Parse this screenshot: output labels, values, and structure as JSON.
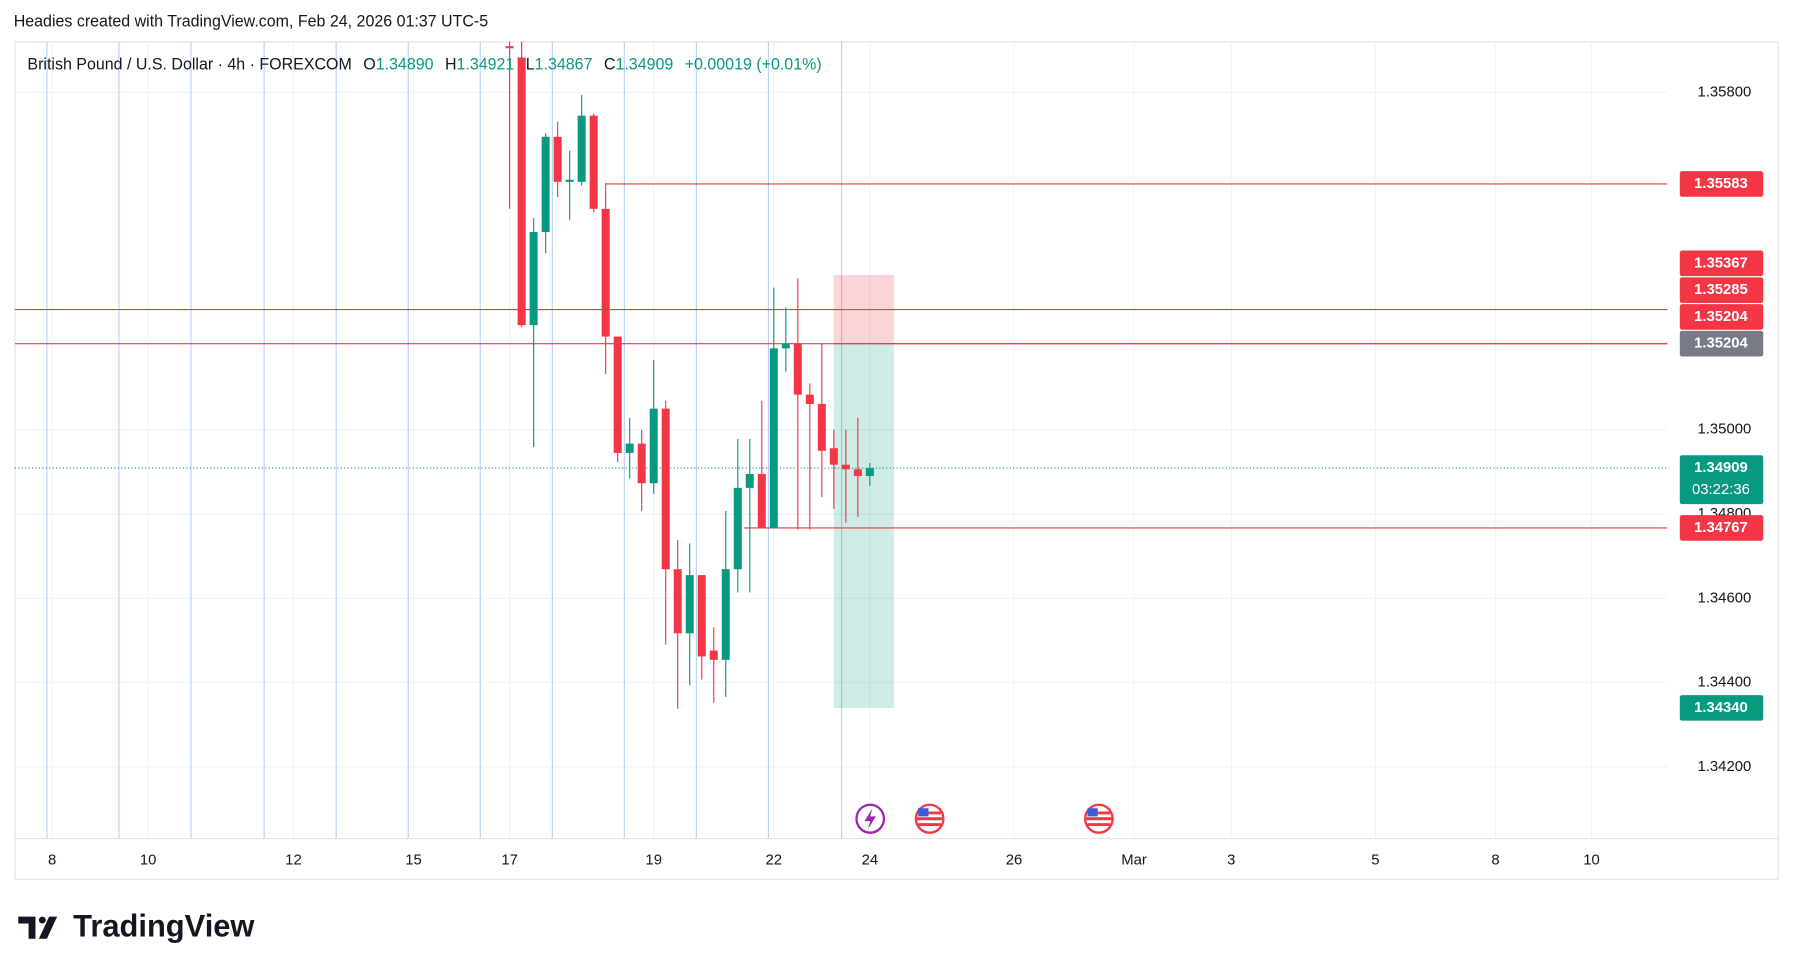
{
  "header": {
    "attribution": "Headies created with TradingView.com, Feb 24, 2026 01:37 UTC-5"
  },
  "chart_data": {
    "type": "candlestick",
    "title": "British Pound / U.S. Dollar · 4h · FOREXCOM",
    "ohlc_legend": {
      "o": "O",
      "open": "1.34890",
      "h": "H",
      "high": "1.34921",
      "l": "L",
      "low": "1.34867",
      "c": "C",
      "close": "1.34909",
      "change": "+0.00019 (+0.01%)"
    },
    "x": [
      0,
      1,
      2,
      3,
      4,
      5,
      6,
      7,
      8,
      9,
      10,
      11,
      12,
      13,
      14,
      15,
      16,
      17,
      18,
      19,
      20,
      21,
      22,
      23,
      24,
      25,
      26,
      27,
      28,
      29,
      30
    ],
    "open": [
      1.3591,
      1.35883,
      1.35248,
      1.35469,
      1.35695,
      1.35588,
      1.35588,
      1.35745,
      1.35524,
      1.35221,
      1.34945,
      1.34967,
      1.34873,
      1.3505,
      1.34669,
      1.34517,
      1.34655,
      1.34476,
      1.34454,
      1.34669,
      1.34862,
      1.34895,
      1.34766,
      1.35193,
      1.35204,
      1.35083,
      1.35061,
      1.34956,
      1.34917,
      1.34906,
      1.3489
    ],
    "high": [
      1.35921,
      1.35921,
      1.35502,
      1.35703,
      1.35731,
      1.35662,
      1.35794,
      1.3575,
      1.35585,
      1.35221,
      1.35028,
      1.35,
      1.35166,
      1.35069,
      1.34738,
      1.3473,
      1.34655,
      1.34531,
      1.34807,
      1.34978,
      1.34978,
      1.35069,
      1.35337,
      1.3529,
      1.35359,
      1.3511,
      1.35204,
      1.35,
      1.35,
      1.35028,
      1.34921
    ],
    "low": [
      1.35524,
      1.35243,
      1.34959,
      1.35419,
      1.35552,
      1.35497,
      1.35579,
      1.35516,
      1.35132,
      1.34923,
      1.34884,
      1.34807,
      1.34848,
      1.3449,
      1.34338,
      1.34393,
      1.34407,
      1.34352,
      1.34366,
      1.34614,
      1.34614,
      1.34766,
      1.34766,
      1.35138,
      1.34763,
      1.34763,
      1.3484,
      1.34812,
      1.34779,
      1.34793,
      1.34867
    ],
    "close": [
      1.35905,
      1.35248,
      1.35469,
      1.35695,
      1.35588,
      1.35593,
      1.35745,
      1.35524,
      1.35221,
      1.34945,
      1.34967,
      1.34873,
      1.3505,
      1.34669,
      1.34517,
      1.34655,
      1.34462,
      1.34454,
      1.34669,
      1.34862,
      1.34895,
      1.34766,
      1.35193,
      1.35204,
      1.35083,
      1.35061,
      1.3495,
      1.34917,
      1.34906,
      1.3489,
      1.34909
    ],
    "up_color": "#089981",
    "down_color": "#f23645",
    "xlim": [
      -41.2,
      96.4
    ],
    "xticks": [
      {
        "value": -38.1,
        "label": "8"
      },
      {
        "value": -30.1,
        "label": "10"
      },
      {
        "value": -18,
        "label": "12"
      },
      {
        "value": -8,
        "label": "15"
      },
      {
        "value": 0,
        "label": "17"
      },
      {
        "value": 12,
        "label": "19"
      },
      {
        "value": 22,
        "label": "22"
      },
      {
        "value": 30,
        "label": "24"
      },
      {
        "value": 42,
        "label": "26"
      },
      {
        "value": 52,
        "label": "Mar"
      },
      {
        "value": 60.1,
        "label": "3"
      },
      {
        "value": 72.1,
        "label": "5"
      },
      {
        "value": 82.1,
        "label": "8"
      },
      {
        "value": 90.1,
        "label": "10"
      }
    ],
    "ylim": [
      1.3403,
      1.3592
    ],
    "yticks": [
      {
        "value": 1.358,
        "label": "1.35800"
      },
      {
        "value": 1.35,
        "label": "1.35000"
      },
      {
        "value": 1.348,
        "label": "1.34800"
      },
      {
        "value": 1.346,
        "label": "1.34600"
      },
      {
        "value": 1.344,
        "label": "1.34400"
      },
      {
        "value": 1.342,
        "label": "1.34200"
      }
    ],
    "grid": true,
    "horizontal_lines": [
      {
        "value": 1.35583,
        "label": "1.35583",
        "x_from": 8,
        "color": "#f23645"
      },
      {
        "value": 1.35285,
        "label": "1.35285",
        "color": "#f23645"
      },
      {
        "value": 1.35204,
        "label": "1.35204",
        "x_from": 27,
        "color": "#f23645"
      },
      {
        "value": 1.34767,
        "label": "1.34767",
        "x_from": 19.5,
        "color": "#f23645"
      }
    ],
    "position": {
      "stop": {
        "value": 1.35367,
        "label": "1.35367"
      },
      "entry": {
        "value": 1.35204,
        "label": "1.35204"
      },
      "target": {
        "value": 1.3434,
        "label": "1.34340"
      },
      "x_from": 27,
      "x_to": 32,
      "stop_color": "#f23645",
      "entry_color": "#787b86",
      "target_color": "#089981"
    },
    "last_price": {
      "value": 1.34909,
      "label": "1.34909",
      "countdown": "03:22:36",
      "color": "#089981"
    }
  },
  "footer": {
    "logo": "TradingView"
  }
}
